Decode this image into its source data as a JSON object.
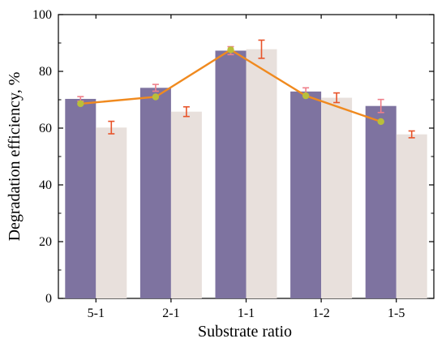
{
  "chart_data": {
    "type": "bar",
    "title": "",
    "xlabel": "Substrate ratio",
    "ylabel": "Degradation efficiency, %",
    "ylim": [
      0,
      100
    ],
    "yticks": [
      0,
      20,
      40,
      60,
      80,
      100
    ],
    "categories": [
      "5-1",
      "2-1",
      "1-1",
      "1-2",
      "1-5"
    ],
    "series": [
      {
        "color": "#7e73a0",
        "errorbar_color": "#ef7f8a",
        "values": [
          70.3,
          74.2,
          87.3,
          72.9,
          67.8
        ],
        "errors": [
          0.8,
          1.2,
          1.4,
          1.3,
          2.3
        ]
      },
      {
        "color": "#e8e0dc",
        "errorbar_color": "#e8542a",
        "values": [
          60.2,
          65.8,
          87.8,
          70.7,
          57.8
        ],
        "errors": [
          2.2,
          1.7,
          3.2,
          1.7,
          1.2
        ]
      }
    ],
    "line": {
      "color": "#f08a1f",
      "marker_color": "#b9bf3a",
      "values": [
        68.6,
        71.0,
        87.6,
        71.4,
        62.3
      ]
    },
    "grid": false,
    "legend": "none"
  }
}
